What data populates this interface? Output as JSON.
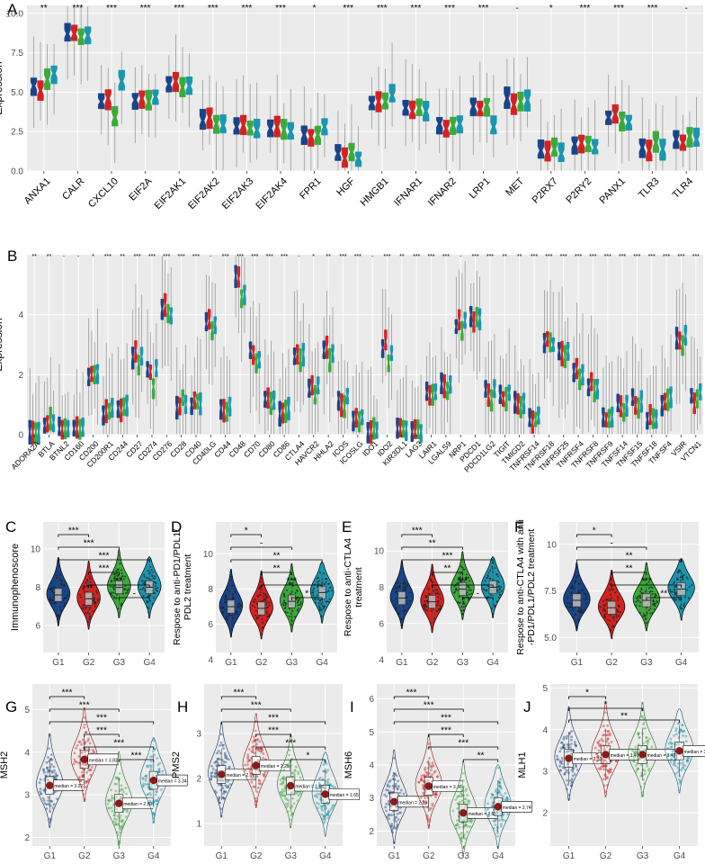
{
  "figure": {
    "colors": [
      "#17458a",
      "#d62121",
      "#3aab3a",
      "#1996b0"
    ],
    "groups": [
      "G1",
      "G2",
      "G3",
      "G4"
    ],
    "panel_bg": "#ebebeb",
    "grid_color": "#ffffff"
  },
  "chart_data": [
    {
      "panel": "A",
      "type": "box",
      "ylabel": "Expression",
      "ylim": [
        0,
        10.5
      ],
      "yticks": [
        "0.0",
        "2.5",
        "5.0",
        "7.5",
        "10.0"
      ],
      "yticks_values": [
        0,
        2.5,
        5,
        7.5,
        10
      ],
      "categories": [
        "ANXA1",
        "CALR",
        "CXCL10",
        "EIF2A",
        "EIF2AK1",
        "EIF2AK2",
        "EIF2AK3",
        "EIF2AK4",
        "FPR1",
        "HGF",
        "HMGB1",
        "IFNAR1",
        "IFNAR2",
        "LRP1",
        "MET",
        "P2RX7",
        "P2RY2",
        "PANX1",
        "TLR3",
        "TLR4"
      ],
      "significance": [
        "**",
        "***",
        "***",
        "***",
        "***",
        "***",
        "***",
        "***",
        "*",
        "***",
        "***",
        "***",
        "***",
        "***",
        "-",
        "*",
        "***",
        "***",
        "***",
        "-"
      ],
      "medians": [
        [
          5.4,
          5.1,
          5.8,
          6.2
        ],
        [
          8.7,
          8.7,
          8.5,
          8.6
        ],
        [
          4.4,
          4.6,
          3.4,
          5.7
        ],
        [
          4.5,
          4.6,
          4.4,
          4.7
        ],
        [
          5.5,
          5.7,
          5.3,
          5.4
        ],
        [
          3.2,
          3.4,
          3.0,
          2.9
        ],
        [
          2.8,
          2.9,
          2.7,
          2.6
        ],
        [
          2.7,
          2.8,
          2.6,
          2.5
        ],
        [
          2.3,
          2.2,
          2.3,
          2.8
        ],
        [
          1.1,
          0.8,
          1.2,
          0.8
        ],
        [
          4.3,
          4.4,
          4.4,
          4.8
        ],
        [
          4.0,
          3.8,
          4.0,
          3.8
        ],
        [
          3.0,
          2.7,
          2.9,
          3.0
        ],
        [
          4.1,
          3.9,
          4.2,
          2.8
        ],
        [
          4.6,
          4.2,
          4.4,
          4.5
        ],
        [
          1.3,
          1.2,
          1.4,
          1.1
        ],
        [
          1.7,
          1.8,
          1.7,
          1.5
        ],
        [
          3.4,
          3.6,
          3.2,
          3.1
        ],
        [
          1.5,
          1.3,
          1.8,
          1.4
        ],
        [
          2.0,
          1.8,
          2.2,
          2.0
        ]
      ]
    },
    {
      "panel": "B",
      "type": "box",
      "ylabel": "Expression",
      "ylim": [
        0,
        6
      ],
      "yticks": [
        "0",
        "2",
        "4"
      ],
      "yticks_values": [
        0,
        2,
        4
      ],
      "categories": [
        "ADORA2A",
        "BTLA",
        "BTNL2",
        "CD160",
        "CD200",
        "CD200R1",
        "CD244",
        "CD27",
        "CD274",
        "CD276",
        "CD28",
        "CD40",
        "CD40LG",
        "CD44",
        "CD48",
        "CD70",
        "CD80",
        "CD86",
        "CTLA4",
        "HAVCR2",
        "HHLA2",
        "ICOS",
        "ICOSLG",
        "IDO1",
        "IDO2",
        "KIR3DL1",
        "LAG3",
        "LAIR1",
        "LGALS9",
        "NRP1",
        "PDCD1",
        "PDCD1LG2",
        "TIGIT",
        "TMIGD2",
        "TNFRSF14",
        "TNFRSF18",
        "TNFRSF25",
        "TNFRSF4",
        "TNFRSF8",
        "TNFRSF9",
        "TNFSF14",
        "TNFSF15",
        "TNFSF18",
        "TNFSF4",
        "VSIR",
        "VTCN1"
      ],
      "significance": [
        "**",
        "**",
        "-",
        "-",
        "*",
        "***",
        "**",
        "***",
        "***",
        "***",
        "***",
        "***",
        "-",
        "***",
        "***",
        "***",
        "***",
        "***",
        "-",
        "*",
        "**",
        "***",
        "***",
        "-",
        "***",
        "**",
        "***",
        "***",
        "***",
        "-",
        "***",
        "***",
        "**",
        "**",
        "***",
        "***",
        "***",
        "***",
        "***",
        "***",
        "***",
        "***",
        "***",
        "***",
        "***",
        "***"
      ],
      "medians": [
        [
          0.1,
          0.1,
          0.1,
          0.1
        ],
        [
          0.3,
          0.4,
          0.5,
          0.4
        ],
        [
          0.2,
          0.2,
          0.2,
          0.2
        ],
        [
          0.2,
          0.2,
          0.2,
          0.2
        ],
        [
          1.9,
          2.0,
          2.0,
          2.1
        ],
        [
          0.7,
          0.8,
          0.8,
          0.9
        ],
        [
          0.9,
          0.8,
          0.9,
          1.0
        ],
        [
          2.6,
          2.8,
          2.4,
          2.6
        ],
        [
          2.2,
          2.1,
          1.6,
          2.2
        ],
        [
          4.2,
          4.3,
          4.1,
          4.0
        ],
        [
          0.9,
          1.0,
          1.2,
          1.0
        ],
        [
          1.0,
          1.2,
          1.1,
          1.0
        ],
        [
          3.7,
          3.8,
          3.5,
          3.7
        ],
        [
          0.9,
          0.8,
          0.7,
          1.0
        ],
        [
          5.3,
          5.2,
          4.6,
          4.7
        ],
        [
          2.8,
          2.7,
          2.4,
          2.5
        ],
        [
          1.2,
          1.2,
          1.0,
          1.1
        ],
        [
          0.7,
          0.8,
          0.8,
          0.9
        ],
        [
          2.6,
          2.7,
          2.5,
          2.7
        ],
        [
          1.5,
          1.6,
          1.3,
          1.6
        ],
        [
          2.8,
          2.9,
          2.5,
          2.7
        ],
        [
          1.2,
          1.0,
          0.9,
          1.3
        ],
        [
          0.5,
          0.6,
          0.5,
          0.6
        ],
        [
          0.1,
          0.1,
          0.2,
          0.1
        ],
        [
          2.9,
          3.1,
          2.4,
          2.7
        ],
        [
          0.2,
          0.2,
          0.2,
          0.2
        ],
        [
          0.1,
          0.1,
          0.1,
          0.1
        ],
        [
          1.4,
          1.3,
          1.3,
          1.4
        ],
        [
          1.7,
          1.6,
          1.5,
          1.7
        ],
        [
          3.6,
          3.8,
          3.5,
          3.8
        ],
        [
          4.0,
          3.7,
          3.9,
          3.9
        ],
        [
          1.5,
          1.3,
          1.2,
          1.5
        ],
        [
          1.3,
          1.2,
          1.2,
          1.4
        ],
        [
          1.1,
          1.0,
          0.9,
          1.1
        ],
        [
          0.5,
          0.4,
          0.5,
          0.6
        ],
        [
          3.1,
          3.2,
          3.0,
          3.0
        ],
        [
          2.8,
          2.7,
          2.6,
          2.8
        ],
        [
          2.1,
          2.2,
          1.9,
          2.0
        ],
        [
          1.6,
          1.7,
          1.5,
          1.6
        ],
        [
          0.6,
          0.5,
          0.5,
          0.6
        ],
        [
          1.0,
          0.9,
          0.8,
          1.0
        ],
        [
          1.2,
          1.0,
          0.9,
          1.1
        ],
        [
          0.5,
          0.6,
          0.5,
          0.5
        ],
        [
          1.0,
          1.1,
          1.2,
          1.3
        ],
        [
          3.2,
          3.1,
          3.0,
          3.3
        ],
        [
          1.3,
          1.0,
          1.2,
          1.4
        ]
      ]
    },
    {
      "panel": "C",
      "type": "violin",
      "ylabel": "Immunophenoscore",
      "ylim": [
        4.6,
        11.4
      ],
      "yticks": [
        "6",
        "8",
        "10"
      ],
      "yticks_values": [
        6,
        8,
        10
      ],
      "categories": [
        "G1",
        "G2",
        "G3",
        "G4"
      ],
      "medians": [
        7.6,
        7.4,
        8.0,
        8.0
      ],
      "comparisons": [
        {
          "pair": [
            1,
            2
          ],
          "label": "***"
        },
        {
          "pair": [
            1,
            3
          ],
          "label": "***"
        },
        {
          "pair": [
            1,
            4
          ],
          "label": "***"
        },
        {
          "pair": [
            2,
            3
          ],
          "label": "***"
        },
        {
          "pair": [
            2,
            4
          ],
          "label": "**"
        },
        {
          "pair": [
            3,
            4
          ],
          "label": "-"
        }
      ]
    },
    {
      "panel": "D",
      "type": "violin",
      "ylabel": "Respose to anti-PD1/PDL1/\nPDL2 treatment",
      "ylim": [
        4.4,
        11.8
      ],
      "yticks": [
        "4",
        "6",
        "8",
        "10"
      ],
      "yticks_values": [
        4,
        6,
        8,
        10
      ],
      "categories": [
        "G1",
        "G2",
        "G3",
        "G4"
      ],
      "medians": [
        7.0,
        6.9,
        7.3,
        7.8
      ],
      "comparisons": [
        {
          "pair": [
            1,
            2
          ],
          "label": "*"
        },
        {
          "pair": [
            1,
            3
          ],
          "label": "-"
        },
        {
          "pair": [
            1,
            4
          ],
          "label": "**"
        },
        {
          "pair": [
            2,
            3
          ],
          "label": "**"
        },
        {
          "pair": [
            2,
            4
          ],
          "label": "***"
        },
        {
          "pair": [
            3,
            4
          ],
          "label": "*"
        }
      ]
    },
    {
      "panel": "E",
      "type": "violin",
      "ylabel": "Respose to anti-CTLA4\ntreatment",
      "ylim": [
        4.4,
        11.6
      ],
      "yticks": [
        "4",
        "6",
        "8",
        "10"
      ],
      "yticks_values": [
        4,
        6,
        8,
        10
      ],
      "categories": [
        "G1",
        "G2",
        "G3",
        "G4"
      ],
      "medians": [
        7.4,
        7.2,
        7.9,
        8.0
      ],
      "comparisons": [
        {
          "pair": [
            1,
            2
          ],
          "label": "***"
        },
        {
          "pair": [
            1,
            3
          ],
          "label": "**"
        },
        {
          "pair": [
            1,
            4
          ],
          "label": "***"
        },
        {
          "pair": [
            2,
            3
          ],
          "label": "**"
        },
        {
          "pair": [
            2,
            4
          ],
          "label": "***"
        },
        {
          "pair": [
            3,
            4
          ],
          "label": "-"
        }
      ]
    },
    {
      "panel": "F",
      "type": "violin",
      "ylabel": "Respose to anti-CTLA4  with anti\n-PD1/PDL1/PDL2 treatment",
      "ylim": [
        4.2,
        11.2
      ],
      "yticks": [
        "5.0",
        "7.5",
        "10"
      ],
      "yticks_values": [
        5,
        7.5,
        10
      ],
      "categories": [
        "G1",
        "G2",
        "G3",
        "G4"
      ],
      "medians": [
        7.0,
        6.6,
        7.0,
        7.6
      ],
      "comparisons": [
        {
          "pair": [
            1,
            2
          ],
          "label": "*"
        },
        {
          "pair": [
            1,
            3
          ],
          "label": "-"
        },
        {
          "pair": [
            1,
            4
          ],
          "label": "**"
        },
        {
          "pair": [
            2,
            3
          ],
          "label": "**"
        },
        {
          "pair": [
            2,
            4
          ],
          "label": "***"
        },
        {
          "pair": [
            3,
            4
          ],
          "label": "**"
        }
      ]
    },
    {
      "panel": "G",
      "type": "violin_box",
      "ylabel": "MSH2",
      "ylim": [
        1.8,
        5.6
      ],
      "yticks": [
        "2",
        "3",
        "4",
        "5"
      ],
      "yticks_values": [
        2,
        3,
        4,
        5
      ],
      "categories": [
        "G1",
        "G2",
        "G3",
        "G4"
      ],
      "medians": [
        3.22,
        3.83,
        2.8,
        3.34
      ],
      "median_labels": [
        "median = 3.22",
        "median = 3.83",
        "median = 2.80",
        "median = 3.34"
      ],
      "comparisons": [
        {
          "pair": [
            1,
            2
          ],
          "label": "***"
        },
        {
          "pair": [
            1,
            3
          ],
          "label": "***"
        },
        {
          "pair": [
            1,
            4
          ],
          "label": "***"
        },
        {
          "pair": [
            2,
            3
          ],
          "label": "***"
        },
        {
          "pair": [
            2,
            4
          ],
          "label": "***"
        },
        {
          "pair": [
            3,
            4
          ],
          "label": "***"
        }
      ]
    },
    {
      "panel": "H",
      "type": "violin_box",
      "ylabel": "PMS2",
      "ylim": [
        0.5,
        4.1
      ],
      "yticks": [
        "1",
        "2",
        "3"
      ],
      "yticks_values": [
        1,
        2,
        3
      ],
      "categories": [
        "G1",
        "G2",
        "G3",
        "G4"
      ],
      "medians": [
        2.09,
        2.29,
        1.84,
        1.65
      ],
      "median_labels": [
        "median = 2.09",
        "median = 2.29",
        "median = 1.84",
        "median = 1.65"
      ],
      "comparisons": [
        {
          "pair": [
            1,
            2
          ],
          "label": "***"
        },
        {
          "pair": [
            1,
            3
          ],
          "label": "***"
        },
        {
          "pair": [
            1,
            4
          ],
          "label": "***"
        },
        {
          "pair": [
            2,
            3
          ],
          "label": "***"
        },
        {
          "pair": [
            2,
            4
          ],
          "label": "***"
        },
        {
          "pair": [
            3,
            4
          ],
          "label": "*"
        }
      ]
    },
    {
      "panel": "I",
      "type": "violin_box",
      "ylabel": "MSH6",
      "ylim": [
        1.55,
        6.45
      ],
      "yticks": [
        "2",
        "3",
        "4",
        "5",
        "6"
      ],
      "yticks_values": [
        2,
        3,
        4,
        5,
        6
      ],
      "categories": [
        "G1",
        "G2",
        "G3",
        "G4"
      ],
      "medians": [
        2.89,
        3.36,
        2.55,
        2.74
      ],
      "median_labels": [
        "median = 2.89",
        "median = 3.36",
        "median = 2.55",
        "median = 2.74"
      ],
      "comparisons": [
        {
          "pair": [
            1,
            2
          ],
          "label": "***"
        },
        {
          "pair": [
            1,
            3
          ],
          "label": "***"
        },
        {
          "pair": [
            1,
            4
          ],
          "label": "***"
        },
        {
          "pair": [
            2,
            3
          ],
          "label": "***"
        },
        {
          "pair": [
            2,
            4
          ],
          "label": "***"
        },
        {
          "pair": [
            3,
            4
          ],
          "label": "**"
        }
      ]
    },
    {
      "panel": "J",
      "type": "violin_box",
      "ylabel": "MLH1",
      "ylim": [
        1.2,
        5.1
      ],
      "yticks": [
        "2",
        "3",
        "4",
        "5"
      ],
      "yticks_values": [
        2,
        3,
        4,
        5
      ],
      "categories": [
        "G1",
        "G2",
        "G3",
        "G4"
      ],
      "medians": [
        3.31,
        3.4,
        3.4,
        3.49
      ],
      "median_labels": [
        "median = 3.31",
        "median = 3.40",
        "median = 3.40",
        "median = 3.49"
      ],
      "comparisons": [
        {
          "pair": [
            1,
            2
          ],
          "label": "*"
        },
        {
          "pair": [
            1,
            3
          ],
          "label": "*"
        },
        {
          "pair": [
            1,
            4
          ],
          "label": "**"
        }
      ]
    }
  ]
}
